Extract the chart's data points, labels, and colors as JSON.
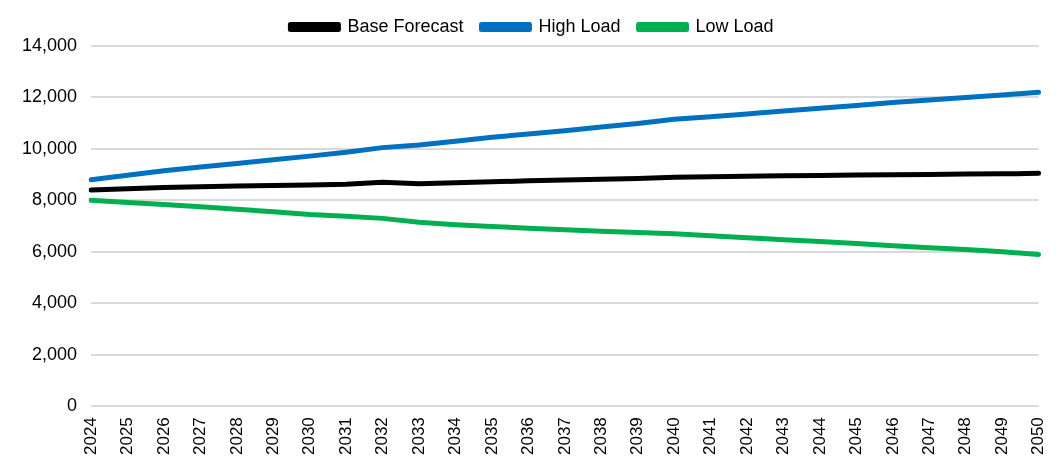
{
  "chart_data": {
    "type": "line",
    "categories": [
      "2024",
      "2025",
      "2026",
      "2027",
      "2028",
      "2029",
      "2030",
      "2031",
      "2032",
      "2033",
      "2034",
      "2035",
      "2036",
      "2037",
      "2038",
      "2039",
      "2040",
      "2041",
      "2042",
      "2043",
      "2044",
      "2045",
      "2046",
      "2047",
      "2048",
      "2049",
      "2050"
    ],
    "series": [
      {
        "name": "Base Forecast",
        "color": "#000000",
        "values": [
          8400,
          8450,
          8500,
          8530,
          8560,
          8580,
          8600,
          8630,
          8700,
          8650,
          8680,
          8720,
          8760,
          8790,
          8820,
          8850,
          8900,
          8920,
          8940,
          8960,
          8970,
          8990,
          9000,
          9010,
          9020,
          9030,
          9050
        ]
      },
      {
        "name": "High Load",
        "color": "#0070c0",
        "values": [
          8800,
          8980,
          9150,
          9300,
          9430,
          9580,
          9720,
          9870,
          10050,
          10150,
          10300,
          10450,
          10580,
          10710,
          10850,
          10990,
          11150,
          11250,
          11360,
          11470,
          11580,
          11690,
          11800,
          11900,
          12000,
          12100,
          12200
        ]
      },
      {
        "name": "Low Load",
        "color": "#00b050",
        "values": [
          8000,
          7920,
          7840,
          7750,
          7650,
          7560,
          7450,
          7380,
          7300,
          7150,
          7050,
          6980,
          6920,
          6860,
          6800,
          6750,
          6700,
          6620,
          6550,
          6470,
          6400,
          6320,
          6240,
          6160,
          6090,
          6000,
          5900
        ]
      }
    ],
    "ylim": [
      0,
      14000
    ],
    "yticks": [
      {
        "value": 0,
        "label": "0"
      },
      {
        "value": 2000,
        "label": "2,000"
      },
      {
        "value": 4000,
        "label": "4,000"
      },
      {
        "value": 6000,
        "label": "6,000"
      },
      {
        "value": 8000,
        "label": "8,000"
      },
      {
        "value": 10000,
        "label": "10,000"
      },
      {
        "value": 12000,
        "label": "12,000"
      },
      {
        "value": 14000,
        "label": "14,000"
      }
    ],
    "grid": "y",
    "legend": "top",
    "marker": "none",
    "line_style": "solid"
  }
}
